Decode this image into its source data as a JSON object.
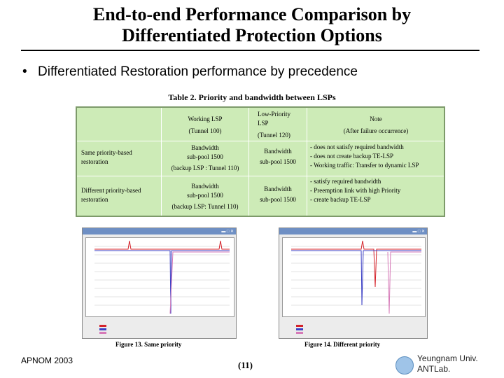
{
  "title_line1": "End-to-end Performance Comparison by",
  "title_line2": "Differentiated Protection Options",
  "bullet": "Differentiated Restoration performance by precedence",
  "table": {
    "caption": "Table 2. Priority and bandwidth between LSPs",
    "header": {
      "working_lsp": [
        "Working LSP",
        "(Tunnel 100)"
      ],
      "low_priority_lsp": [
        "Low-Priority",
        "LSP",
        "(Tunnel 120)"
      ],
      "note": [
        "Note",
        "(After failure occurrence)"
      ]
    },
    "rows": [
      {
        "label": [
          "Same priority-based",
          "restoration"
        ],
        "working": [
          "Bandwidth",
          "sub-pool 1500",
          "(backup LSP : Tunnel 110)"
        ],
        "low": [
          "Bandwidth",
          "sub-pool 1500"
        ],
        "note": [
          "- does not satisfy required bandwidth",
          "- does not create backup TE-LSP",
          "- Working traffic: Transfer to dynamic LSP"
        ]
      },
      {
        "label": [
          "Different priority-based",
          "restoration"
        ],
        "working": [
          "Bandwidth",
          "sub-pool 1500",
          "(backup LSP: Tunnel 110)"
        ],
        "low": [
          "Bandwidth",
          "sub-pool 1500"
        ],
        "note": [
          "- satisfy required bandwidth",
          "- Preemption link with high Priority",
          "- create backup TE-LSP"
        ]
      }
    ]
  },
  "figure13": {
    "caption": "Figure 13. Same priority"
  },
  "figure14": {
    "caption": "Figure 14. Different priority"
  },
  "colors": {
    "table_bg": "#cdebb7",
    "series_red": "#d4232b",
    "series_blue": "#3b3fc4",
    "series_pink": "#d67ab8"
  },
  "footer": {
    "left": "APNOM 2003",
    "page": "(11)",
    "right_line1": "Yeungnam Univ.",
    "right_line2": "ANTLab."
  }
}
